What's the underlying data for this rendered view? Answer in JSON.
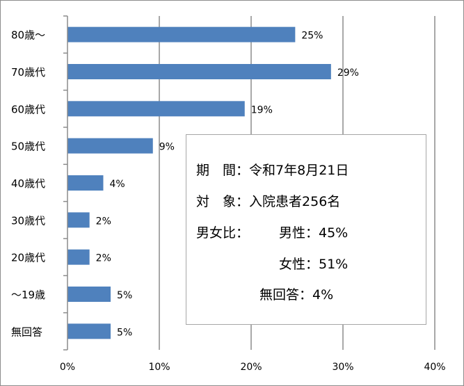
{
  "chart_data": {
    "type": "bar",
    "orientation": "horizontal",
    "categories": [
      "80歳～",
      "70歳代",
      "60歳代",
      "50歳代",
      "40歳代",
      "30歳代",
      "20歳代",
      "～19歳",
      "無回答"
    ],
    "values": [
      25,
      29,
      19,
      9,
      4,
      2,
      2,
      5,
      5
    ],
    "plot_values": [
      24.8,
      28.7,
      19.3,
      9.3,
      3.9,
      2.4,
      2.4,
      4.7,
      4.7
    ],
    "value_labels": [
      "25%",
      "29%",
      "19%",
      "9%",
      "4%",
      "2%",
      "2%",
      "5%",
      "5%"
    ],
    "x_ticks": [
      "0%",
      "10%",
      "20%",
      "30%",
      "40%"
    ],
    "xlim": [
      0,
      40
    ],
    "grid": "vertical",
    "bar_color": "#4f81bd"
  },
  "info": {
    "period_label": "期",
    "period_label2": "間",
    "period_value": "：令和7年8月21日",
    "target_label": "対",
    "target_label2": "象",
    "target_value": "：入院患者256名",
    "ratio_label": "男女比：",
    "male": "男性：45%",
    "female": "女性：51%",
    "no_answer": "無回答：4%"
  }
}
